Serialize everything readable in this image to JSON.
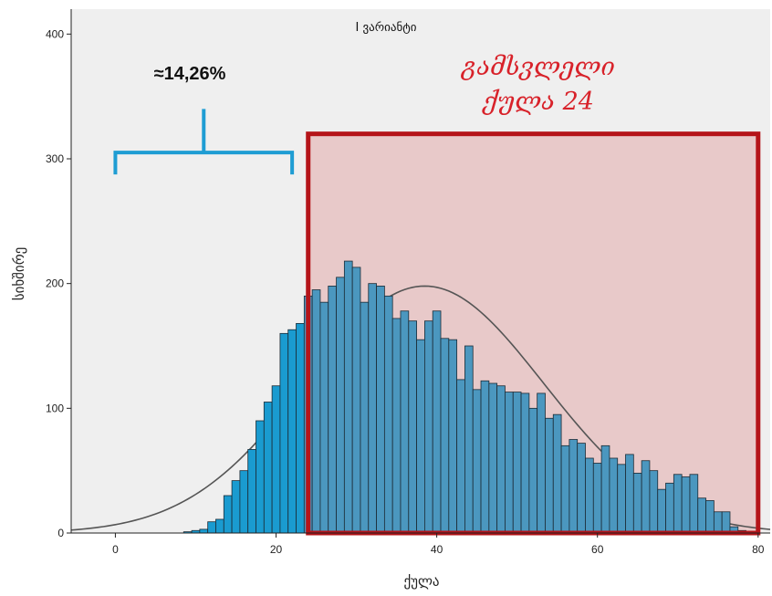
{
  "chart_data": {
    "type": "bar",
    "title": "I ვარიანტი",
    "xlabel": "ქულა",
    "ylabel": "სიხშირე",
    "xlim": [
      -5.5,
      81.5
    ],
    "ylim": [
      0,
      420
    ],
    "xticks": [
      0,
      20,
      40,
      60,
      80
    ],
    "yticks": [
      0,
      100,
      200,
      300,
      400
    ],
    "bin_width": 1,
    "bins": [
      {
        "x": 9,
        "y": 1
      },
      {
        "x": 10,
        "y": 2
      },
      {
        "x": 11,
        "y": 3
      },
      {
        "x": 12,
        "y": 9
      },
      {
        "x": 13,
        "y": 11
      },
      {
        "x": 14,
        "y": 30
      },
      {
        "x": 15,
        "y": 42
      },
      {
        "x": 16,
        "y": 50
      },
      {
        "x": 17,
        "y": 67
      },
      {
        "x": 18,
        "y": 90
      },
      {
        "x": 19,
        "y": 105
      },
      {
        "x": 20,
        "y": 118
      },
      {
        "x": 21,
        "y": 160
      },
      {
        "x": 22,
        "y": 163
      },
      {
        "x": 23,
        "y": 168
      },
      {
        "x": 24,
        "y": 190
      },
      {
        "x": 25,
        "y": 195
      },
      {
        "x": 26,
        "y": 185
      },
      {
        "x": 27,
        "y": 198
      },
      {
        "x": 28,
        "y": 205
      },
      {
        "x": 29,
        "y": 218
      },
      {
        "x": 30,
        "y": 213
      },
      {
        "x": 31,
        "y": 185
      },
      {
        "x": 32,
        "y": 200
      },
      {
        "x": 33,
        "y": 198
      },
      {
        "x": 34,
        "y": 190
      },
      {
        "x": 35,
        "y": 172
      },
      {
        "x": 36,
        "y": 178
      },
      {
        "x": 37,
        "y": 170
      },
      {
        "x": 38,
        "y": 155
      },
      {
        "x": 39,
        "y": 170
      },
      {
        "x": 40,
        "y": 178
      },
      {
        "x": 41,
        "y": 156
      },
      {
        "x": 42,
        "y": 155
      },
      {
        "x": 43,
        "y": 123
      },
      {
        "x": 44,
        "y": 150
      },
      {
        "x": 45,
        "y": 115
      },
      {
        "x": 46,
        "y": 122
      },
      {
        "x": 47,
        "y": 120
      },
      {
        "x": 48,
        "y": 118
      },
      {
        "x": 49,
        "y": 113
      },
      {
        "x": 50,
        "y": 113
      },
      {
        "x": 51,
        "y": 112
      },
      {
        "x": 52,
        "y": 100
      },
      {
        "x": 53,
        "y": 112
      },
      {
        "x": 54,
        "y": 92
      },
      {
        "x": 55,
        "y": 95
      },
      {
        "x": 56,
        "y": 70
      },
      {
        "x": 57,
        "y": 75
      },
      {
        "x": 58,
        "y": 72
      },
      {
        "x": 59,
        "y": 60
      },
      {
        "x": 60,
        "y": 56
      },
      {
        "x": 61,
        "y": 70
      },
      {
        "x": 62,
        "y": 60
      },
      {
        "x": 63,
        "y": 55
      },
      {
        "x": 64,
        "y": 63
      },
      {
        "x": 65,
        "y": 48
      },
      {
        "x": 66,
        "y": 58
      },
      {
        "x": 67,
        "y": 50
      },
      {
        "x": 68,
        "y": 35
      },
      {
        "x": 69,
        "y": 40
      },
      {
        "x": 70,
        "y": 47
      },
      {
        "x": 71,
        "y": 45
      },
      {
        "x": 72,
        "y": 47
      },
      {
        "x": 73,
        "y": 28
      },
      {
        "x": 74,
        "y": 26
      },
      {
        "x": 75,
        "y": 17
      },
      {
        "x": 76,
        "y": 17
      },
      {
        "x": 77,
        "y": 5
      },
      {
        "x": 78,
        "y": 2
      }
    ],
    "normal_curve": {
      "mean": 38.5,
      "peak": 198,
      "sd": 14.8,
      "color": "#555555"
    },
    "colors": {
      "plot_bg": "#efefef",
      "bar_below": "#1a9bd0",
      "bar_above": "#4b97bf",
      "bar_edge": "#1b2b36",
      "highlight_fill": "#e8c9c9",
      "highlight_edge": "#b51419",
      "bracket": "#1f9dd3",
      "pass_text": "#d8222a"
    },
    "annotations": {
      "bracket": {
        "label": "≈14,26%",
        "x_start": 0,
        "x_end": 22,
        "y": 305,
        "stem_top": 340
      },
      "pass_region": {
        "x_start": 24,
        "x_end": 80,
        "y_top": 320,
        "line1": "გამსვლელი",
        "line2": "ქულა 24",
        "x_text": 57
      }
    }
  }
}
